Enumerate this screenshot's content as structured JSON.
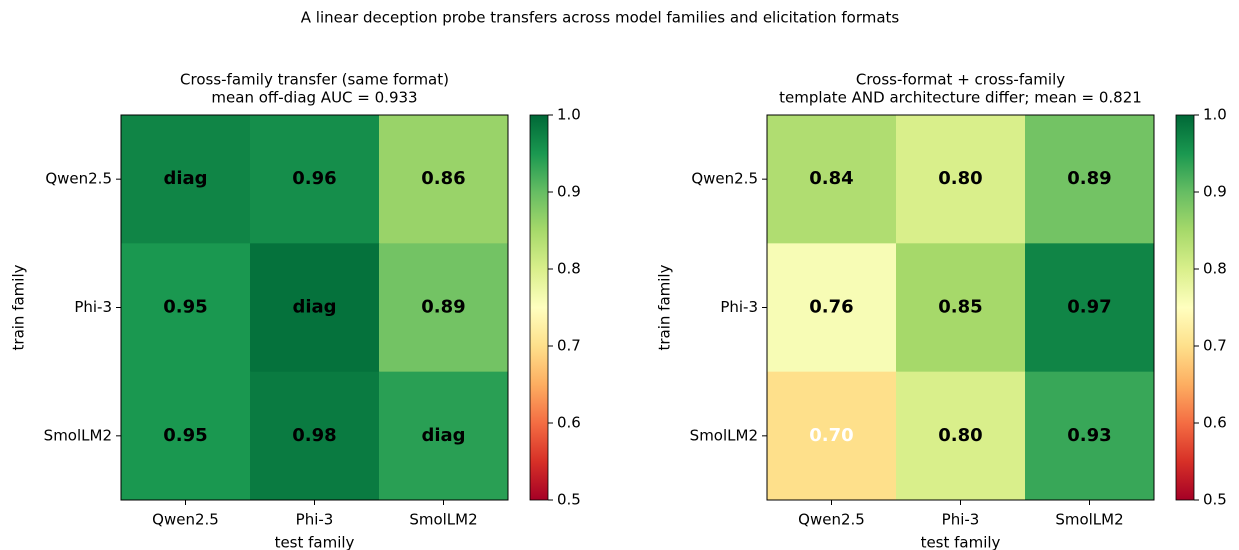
{
  "title": "A linear deception probe transfers across model families and elicitation formats",
  "chart_data": [
    {
      "type": "heatmap",
      "title": "Cross-family transfer (same format)",
      "subtitle": "mean off-diag AUC = 0.933",
      "x_label": "test family",
      "y_label": "train family",
      "x_categories": [
        "Qwen2.5",
        "Phi-3",
        "SmolLM2"
      ],
      "y_categories": [
        "Qwen2.5",
        "Phi-3",
        "SmolLM2"
      ],
      "values": [
        [
          0.97,
          0.96,
          0.86
        ],
        [
          0.95,
          0.99,
          0.89
        ],
        [
          0.95,
          0.98,
          0.94
        ]
      ],
      "value_labels": [
        [
          "diag",
          "0.96",
          "0.86"
        ],
        [
          "0.95",
          "diag",
          "0.89"
        ],
        [
          "0.95",
          "0.98",
          "diag"
        ]
      ],
      "colormap": "RdYlGn",
      "vlim": [
        0.5,
        1.0
      ],
      "cticks": [
        0.5,
        0.6,
        0.7,
        0.8,
        0.9,
        {
          "value": 1.0,
          "label": "1.0"
        }
      ]
    },
    {
      "type": "heatmap",
      "title": "Cross-format + cross-family",
      "subtitle": "template AND architecture differ; mean = 0.821",
      "x_label": "test family",
      "y_label": "train family",
      "x_categories": [
        "Qwen2.5",
        "Phi-3",
        "SmolLM2"
      ],
      "y_categories": [
        "Qwen2.5",
        "Phi-3",
        "SmolLM2"
      ],
      "values": [
        [
          0.84,
          0.8,
          0.89
        ],
        [
          0.76,
          0.85,
          0.97
        ],
        [
          0.7,
          0.8,
          0.93
        ]
      ],
      "value_labels": [
        [
          "0.84",
          "0.80",
          "0.89"
        ],
        [
          "0.76",
          "0.85",
          "0.97"
        ],
        [
          "0.70",
          "0.80",
          "0.93"
        ]
      ],
      "colormap": "RdYlGn",
      "vlim": [
        0.5,
        1.0
      ],
      "cticks": [
        0.5,
        0.6,
        0.7,
        0.8,
        0.9,
        {
          "value": 1.0,
          "label": "1.0"
        }
      ]
    }
  ]
}
